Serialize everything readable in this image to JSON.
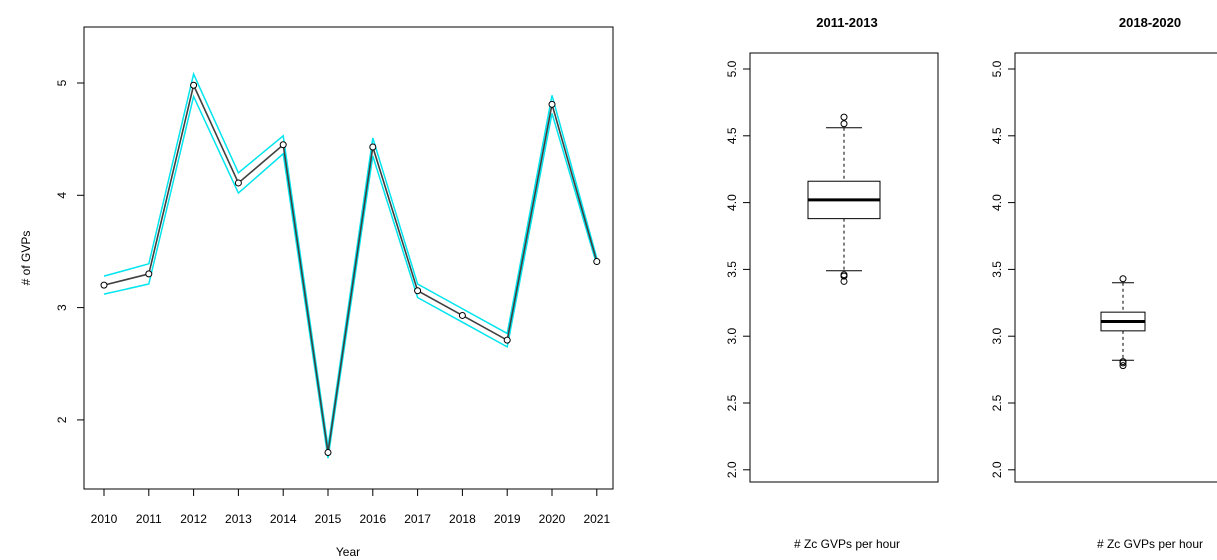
{
  "chart_data": [
    {
      "type": "line",
      "title": "",
      "xlabel": "Year",
      "ylabel": "# of GVPs",
      "x": [
        2010,
        2011,
        2012,
        2013,
        2014,
        2015,
        2016,
        2017,
        2018,
        2019,
        2020,
        2021
      ],
      "xticks": [
        "2010",
        "2011",
        "2012",
        "2013",
        "2014",
        "2015",
        "2016",
        "2017",
        "2018",
        "2019",
        "2020",
        "2021"
      ],
      "yticks": [
        "2",
        "3",
        "4",
        "5"
      ],
      "ylim": [
        1.38,
        5.4
      ],
      "series": [
        {
          "name": "",
          "values": [
            3.2,
            3.3,
            4.98,
            4.11,
            4.45,
            1.71,
            4.43,
            3.15,
            2.93,
            2.71,
            4.81,
            3.41
          ]
        }
      ],
      "band": {
        "upper": [
          3.28,
          3.39,
          5.08,
          4.2,
          4.53,
          1.76,
          4.51,
          3.21,
          2.99,
          2.77,
          4.89,
          3.44
        ],
        "lower": [
          3.12,
          3.21,
          4.88,
          4.02,
          4.37,
          1.66,
          4.35,
          3.09,
          2.87,
          2.65,
          4.73,
          3.38
        ]
      },
      "colors": {
        "line": "#404040",
        "band": "#00e5ee",
        "band_dark": "#006a6a"
      },
      "marker": "open-circle",
      "grid": false,
      "legend": "none"
    },
    {
      "type": "box",
      "title": "2011-2013",
      "xlabel": "# Zc GVPs per hour",
      "ylabel": "",
      "ylim": [
        1.95,
        5.1
      ],
      "yticks": [
        "2.0",
        "2.5",
        "3.0",
        "3.5",
        "4.0",
        "4.5",
        "5.0"
      ],
      "box": {
        "whisker_low": 3.49,
        "q1": 3.88,
        "median": 4.02,
        "q3": 4.16,
        "whisker_high": 4.56
      },
      "outliers": [
        3.41,
        3.45,
        3.46,
        4.59,
        4.64
      ]
    },
    {
      "type": "box",
      "title": "2018-2020",
      "xlabel": "# Zc GVPs per hour",
      "ylabel": "",
      "ylim": [
        1.95,
        5.1
      ],
      "yticks": [
        "2.0",
        "2.5",
        "3.0",
        "3.5",
        "4.0",
        "4.5",
        "5.0"
      ],
      "box": {
        "whisker_low": 2.82,
        "q1": 3.04,
        "median": 3.11,
        "q3": 3.18,
        "whisker_high": 3.4
      },
      "outliers": [
        2.78,
        2.8,
        2.81,
        3.43
      ]
    }
  ]
}
